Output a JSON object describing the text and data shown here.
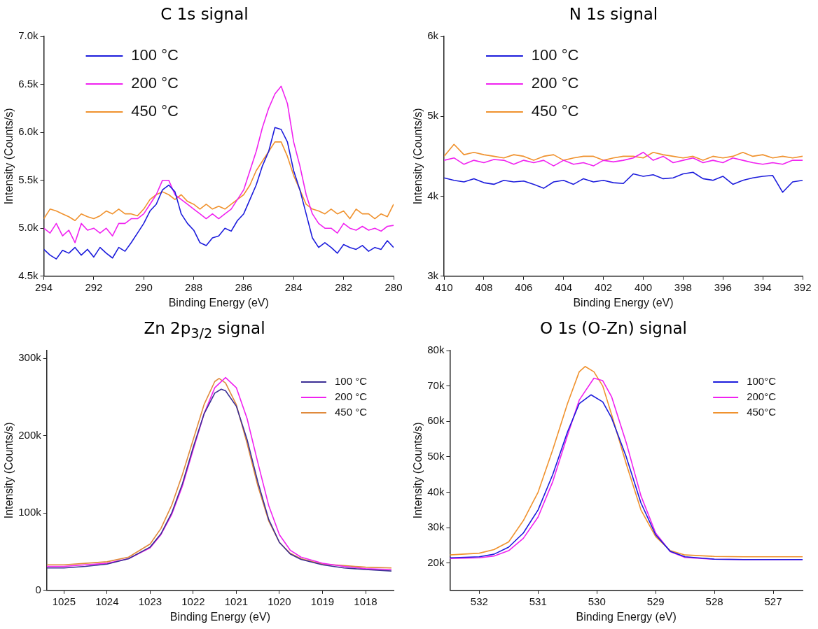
{
  "chart_data": [
    {
      "type": "line",
      "title": "C 1s signal",
      "xlabel": "Binding Energy (eV)",
      "ylabel": "Intensity (Counts/s)",
      "legend": "top left",
      "grid": false,
      "marker": "none",
      "line_style": "solid",
      "x": [
        294,
        293.75,
        293.5,
        293.25,
        293,
        292.75,
        292.5,
        292.25,
        292,
        291.75,
        291.5,
        291.25,
        291,
        290.75,
        290.5,
        290.25,
        290,
        289.75,
        289.5,
        289.25,
        289,
        288.75,
        288.5,
        288.25,
        288,
        287.75,
        287.5,
        287.25,
        287,
        286.75,
        286.5,
        286.25,
        286,
        285.75,
        285.5,
        285.25,
        285,
        284.75,
        284.5,
        284.25,
        284,
        283.75,
        283.5,
        283.25,
        283,
        282.75,
        282.5,
        282.25,
        282,
        281.75,
        281.5,
        281.25,
        281,
        280.75,
        280.5,
        280.25,
        280
      ],
      "xlim": [
        294,
        280
      ],
      "xticks": [
        294,
        292,
        290,
        288,
        286,
        284,
        282,
        280
      ],
      "ylim": [
        4500,
        7000
      ],
      "yticks": [
        {
          "value": 4500,
          "label": "4.5k"
        },
        {
          "value": 5000,
          "label": "5.0k"
        },
        {
          "value": 5500,
          "label": "5.5k"
        },
        {
          "value": 6000,
          "label": "6.0k"
        },
        {
          "value": 6500,
          "label": "6.5k"
        },
        {
          "value": 7000,
          "label": "7.0k"
        }
      ],
      "series": [
        {
          "name": "100 °C",
          "color": "#1c1cdc",
          "values": [
            4780,
            4720,
            4680,
            4770,
            4740,
            4800,
            4720,
            4780,
            4700,
            4800,
            4740,
            4690,
            4800,
            4760,
            4850,
            4950,
            5050,
            5180,
            5250,
            5400,
            5450,
            5380,
            5150,
            5050,
            4980,
            4850,
            4820,
            4900,
            4920,
            5000,
            4970,
            5080,
            5150,
            5300,
            5450,
            5650,
            5800,
            6050,
            6030,
            5900,
            5600,
            5400,
            5150,
            4900,
            4800,
            4850,
            4800,
            4740,
            4830,
            4800,
            4780,
            4820,
            4760,
            4800,
            4780,
            4870,
            4800
          ]
        },
        {
          "name": "200 °C",
          "color": "#f022f0",
          "values": [
            5000,
            4950,
            5050,
            4920,
            4980,
            4850,
            5050,
            4980,
            5000,
            4950,
            5000,
            4920,
            5050,
            5050,
            5100,
            5100,
            5150,
            5250,
            5350,
            5500,
            5500,
            5350,
            5300,
            5250,
            5200,
            5150,
            5100,
            5150,
            5100,
            5150,
            5200,
            5300,
            5400,
            5600,
            5800,
            6050,
            6250,
            6400,
            6480,
            6300,
            5900,
            5650,
            5350,
            5150,
            5050,
            5000,
            5000,
            4950,
            5050,
            5000,
            4980,
            5020,
            4980,
            5000,
            4970,
            5020,
            5030
          ]
        },
        {
          "name": "450 °C",
          "color": "#f0922e",
          "values": [
            5100,
            5200,
            5180,
            5150,
            5120,
            5080,
            5150,
            5120,
            5100,
            5130,
            5180,
            5150,
            5200,
            5150,
            5150,
            5130,
            5200,
            5300,
            5350,
            5380,
            5350,
            5300,
            5350,
            5280,
            5250,
            5200,
            5250,
            5200,
            5230,
            5200,
            5250,
            5300,
            5350,
            5450,
            5600,
            5700,
            5800,
            5900,
            5900,
            5750,
            5550,
            5400,
            5250,
            5200,
            5180,
            5150,
            5200,
            5150,
            5180,
            5100,
            5200,
            5150,
            5150,
            5100,
            5150,
            5120,
            5250
          ]
        }
      ]
    },
    {
      "type": "line",
      "title": "N 1s signal",
      "xlabel": "Binding Energy (eV)",
      "ylabel": "Intensity (Counts/s)",
      "legend": "top left",
      "grid": false,
      "marker": "none",
      "line_style": "solid",
      "x": [
        410,
        409.5,
        409,
        408.5,
        408,
        407.5,
        407,
        406.5,
        406,
        405.5,
        405,
        404.5,
        404,
        403.5,
        403,
        402.5,
        402,
        401.5,
        401,
        400.5,
        400,
        399.5,
        399,
        398.5,
        398,
        397.5,
        397,
        396.5,
        396,
        395.5,
        395,
        394.5,
        394,
        393.5,
        393,
        392.5,
        392
      ],
      "xlim": [
        410,
        392
      ],
      "xticks": [
        410,
        408,
        406,
        404,
        402,
        400,
        398,
        396,
        394,
        392
      ],
      "ylim": [
        3000,
        6000
      ],
      "yticks": [
        {
          "value": 3000,
          "label": "3k"
        },
        {
          "value": 4000,
          "label": "4k"
        },
        {
          "value": 5000,
          "label": "5k"
        },
        {
          "value": 6000,
          "label": "6k"
        }
      ],
      "series": [
        {
          "name": "100 °C",
          "color": "#1c1cdc",
          "values": [
            4230,
            4200,
            4180,
            4220,
            4170,
            4150,
            4200,
            4180,
            4190,
            4150,
            4100,
            4180,
            4200,
            4150,
            4220,
            4180,
            4200,
            4170,
            4160,
            4280,
            4250,
            4270,
            4220,
            4230,
            4280,
            4300,
            4220,
            4200,
            4250,
            4150,
            4200,
            4230,
            4250,
            4260,
            4050,
            4180,
            4200
          ]
        },
        {
          "name": "200 °C",
          "color": "#f022f0",
          "values": [
            4450,
            4480,
            4400,
            4450,
            4420,
            4460,
            4450,
            4400,
            4450,
            4420,
            4450,
            4380,
            4450,
            4400,
            4420,
            4380,
            4450,
            4430,
            4450,
            4480,
            4550,
            4450,
            4500,
            4420,
            4450,
            4480,
            4420,
            4450,
            4420,
            4480,
            4450,
            4420,
            4400,
            4420,
            4400,
            4450,
            4450
          ]
        },
        {
          "name": "450 °C",
          "color": "#f0922e",
          "values": [
            4500,
            4650,
            4520,
            4550,
            4520,
            4500,
            4480,
            4520,
            4500,
            4450,
            4500,
            4520,
            4450,
            4480,
            4500,
            4500,
            4450,
            4480,
            4500,
            4500,
            4480,
            4550,
            4520,
            4500,
            4480,
            4500,
            4450,
            4500,
            4480,
            4500,
            4550,
            4500,
            4520,
            4480,
            4500,
            4480,
            4500
          ]
        }
      ]
    },
    {
      "type": "line",
      "title": "Zn 2p$_{3/2}$ signal",
      "xlabel": "Binding Energy (eV)",
      "ylabel": "Intensity (Counts/s)",
      "legend": "top right",
      "grid": false,
      "marker": "none",
      "line_style": "solid",
      "xlim": [
        1025.4,
        1017.35
      ],
      "xticks": [
        1025,
        1024,
        1023,
        1022,
        1021,
        1020,
        1019,
        1018
      ],
      "ylim": [
        0,
        310000
      ],
      "yticks": [
        0,
        {
          "value": 100000,
          "label": "100k"
        },
        {
          "value": 200000,
          "label": "200k"
        },
        {
          "value": 300000,
          "label": "300k"
        }
      ],
      "series": [
        {
          "name": "100 °C",
          "color": "#3b2e94",
          "x": [
            1025.4,
            1025,
            1024.5,
            1024,
            1023.5,
            1023,
            1022.75,
            1022.5,
            1022.25,
            1022,
            1021.75,
            1021.5,
            1021.35,
            1021.25,
            1021,
            1020.75,
            1020.5,
            1020.25,
            1020,
            1019.75,
            1019.5,
            1019,
            1018.5,
            1018,
            1017.4
          ],
          "values": [
            29000,
            29000,
            31000,
            34000,
            41000,
            56000,
            73000,
            100000,
            138000,
            185000,
            228000,
            255000,
            260000,
            258000,
            238000,
            195000,
            140000,
            92000,
            62000,
            47000,
            40000,
            33000,
            29000,
            27000,
            25000
          ]
        },
        {
          "name": "200 °C",
          "color": "#f022f0",
          "x": [
            1025.4,
            1025,
            1024.5,
            1024,
            1023.5,
            1023,
            1022.75,
            1022.5,
            1022.25,
            1022,
            1021.75,
            1021.5,
            1021.25,
            1021,
            1020.75,
            1020.5,
            1020.25,
            1020,
            1019.75,
            1019.5,
            1019,
            1018.5,
            1018,
            1017.4
          ],
          "values": [
            31000,
            31000,
            33000,
            35000,
            41000,
            55000,
            72000,
            98000,
            135000,
            182000,
            228000,
            262000,
            275000,
            262000,
            222000,
            165000,
            110000,
            72000,
            52000,
            43000,
            35000,
            31000,
            28000,
            27000
          ]
        },
        {
          "name": "450 °C",
          "color": "#e08a3c",
          "x": [
            1025.4,
            1025,
            1024.5,
            1024,
            1023.5,
            1023,
            1022.75,
            1022.5,
            1022.25,
            1022,
            1021.75,
            1021.5,
            1021.4,
            1021.25,
            1021,
            1020.75,
            1020.5,
            1020.25,
            1020,
            1019.75,
            1019.5,
            1019,
            1018.5,
            1018,
            1017.4
          ],
          "values": [
            33000,
            33000,
            35000,
            37000,
            43000,
            60000,
            80000,
            110000,
            150000,
            195000,
            240000,
            270000,
            274000,
            268000,
            240000,
            190000,
            135000,
            90000,
            62000,
            48000,
            41000,
            34000,
            32000,
            30000,
            29000
          ]
        }
      ]
    },
    {
      "type": "line",
      "title": "O 1s (O-Zn) signal",
      "xlabel": "Binding Energy (eV)",
      "ylabel": "Intensity (Counts/s)",
      "legend": "top right",
      "grid": false,
      "marker": "none",
      "line_style": "solid",
      "xlim": [
        532.5,
        526.5
      ],
      "xticks": [
        532,
        531,
        530,
        529,
        528,
        527
      ],
      "ylim": [
        12300,
        80000
      ],
      "yticks": [
        {
          "value": 20000,
          "label": "20k"
        },
        {
          "value": 30000,
          "label": "30k"
        },
        {
          "value": 40000,
          "label": "40k"
        },
        {
          "value": 50000,
          "label": "50k"
        },
        {
          "value": 60000,
          "label": "60k"
        },
        {
          "value": 70000,
          "label": "70k"
        },
        {
          "value": 80000,
          "label": "80k"
        }
      ],
      "series": [
        {
          "name": "100°C",
          "color": "#1c1cdc",
          "x": [
            532.5,
            532,
            531.75,
            531.5,
            531.25,
            531,
            530.75,
            530.5,
            530.3,
            530.1,
            529.9,
            529.75,
            529.5,
            529.25,
            529,
            528.75,
            528.5,
            528,
            527.5,
            526.5
          ],
          "values": [
            21500,
            21800,
            22500,
            24500,
            28500,
            35000,
            45000,
            57000,
            65000,
            67500,
            65500,
            61000,
            50000,
            37000,
            28000,
            23300,
            21800,
            21100,
            21000,
            21000
          ]
        },
        {
          "name": "200°C",
          "color": "#f022f0",
          "x": [
            532.5,
            532,
            531.75,
            531.5,
            531.25,
            531,
            530.75,
            530.5,
            530.3,
            530.05,
            529.9,
            529.75,
            529.5,
            529.25,
            529,
            528.75,
            528.5,
            528,
            527.5,
            526.5
          ],
          "values": [
            21300,
            21500,
            22000,
            23500,
            27000,
            33000,
            43000,
            56000,
            66000,
            72200,
            71500,
            67000,
            54000,
            39000,
            28500,
            23200,
            21600,
            21100,
            21000,
            21000
          ]
        },
        {
          "name": "450°C",
          "color": "#f0922e",
          "x": [
            532.5,
            532,
            531.75,
            531.5,
            531.25,
            531,
            530.75,
            530.5,
            530.3,
            530.2,
            530.05,
            529.9,
            529.75,
            529.5,
            529.25,
            529,
            528.75,
            528.5,
            528,
            527.5,
            526.5
          ],
          "values": [
            22300,
            22800,
            23800,
            26000,
            32000,
            40000,
            52000,
            65000,
            74000,
            75500,
            74000,
            70000,
            62000,
            48000,
            35000,
            27500,
            23500,
            22300,
            21900,
            21800,
            21800
          ]
        }
      ]
    }
  ]
}
